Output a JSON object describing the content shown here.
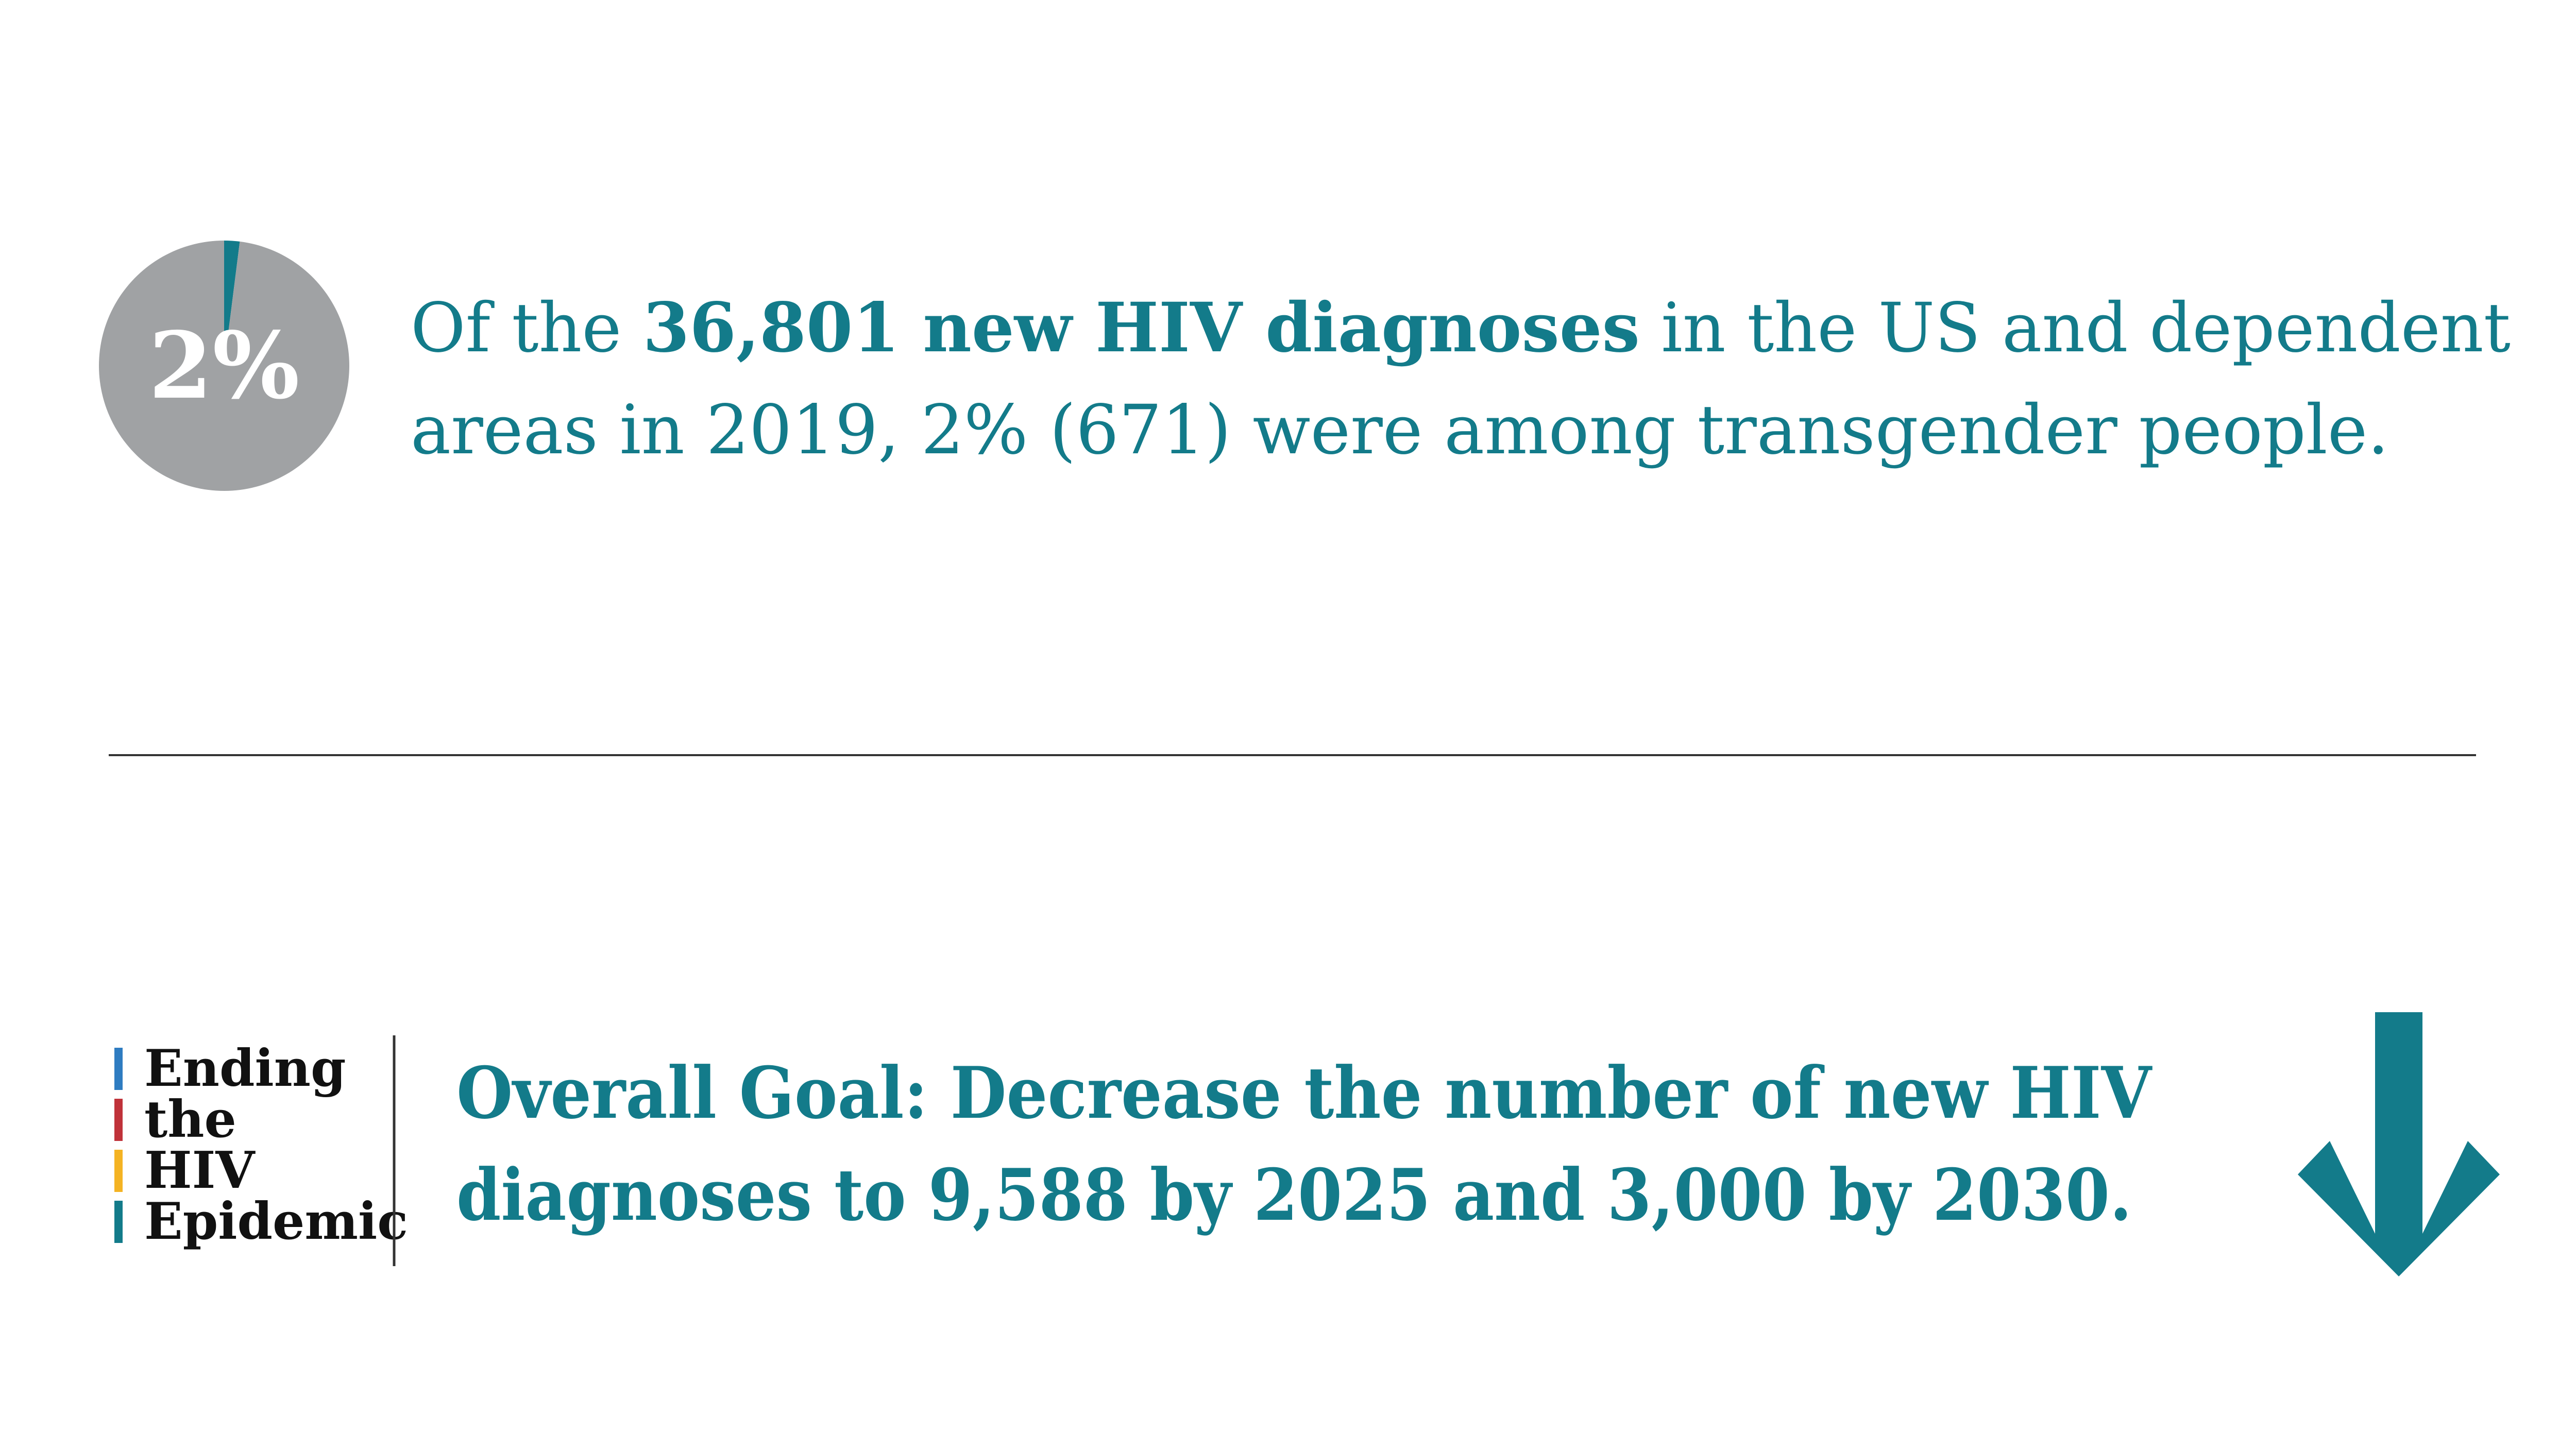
{
  "chart_data": {
    "type": "pie",
    "values": [
      2,
      98
    ],
    "value_labels": [
      "2%",
      null
    ],
    "colors": [
      "#137b8a",
      "#a0a2a4"
    ]
  },
  "statement": {
    "lines": [
      [
        "Of the ",
        "36,801 new HIV diagnoses",
        " in the US and dependent"
      ],
      [
        "areas in 2019, 2% (671) were among transgender people."
      ]
    ]
  },
  "logo": {
    "words": [
      "Ending",
      "the",
      "HIV",
      "Epidemic"
    ],
    "colors": [
      "#2e7cc1",
      "#c0323a",
      "#f4b323",
      "#137b8a"
    ]
  },
  "goal": {
    "label": "Overall Goal:",
    "lines": [
      " Decrease the number of new HIV",
      "diagnoses to 9,588 by 2025 and 3,000 by 2030."
    ]
  }
}
